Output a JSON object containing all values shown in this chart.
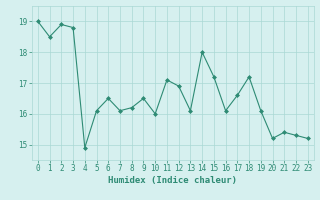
{
  "x": [
    0,
    1,
    2,
    3,
    4,
    5,
    6,
    7,
    8,
    9,
    10,
    11,
    12,
    13,
    14,
    15,
    16,
    17,
    18,
    19,
    20,
    21,
    22,
    23
  ],
  "y": [
    19.0,
    18.5,
    18.9,
    18.8,
    14.9,
    16.1,
    16.5,
    16.1,
    16.2,
    16.5,
    16.0,
    17.1,
    16.9,
    16.1,
    18.0,
    17.2,
    16.1,
    16.6,
    17.2,
    16.1,
    15.2,
    15.4,
    15.3,
    15.2
  ],
  "line_color": "#2e8b74",
  "marker": "D",
  "marker_size": 2.0,
  "bg_color": "#d6f0ef",
  "grid_color": "#aad8d4",
  "xlabel": "Humidex (Indice chaleur)",
  "xlim": [
    -0.5,
    23.5
  ],
  "ylim": [
    14.5,
    19.5
  ],
  "yticks": [
    15,
    16,
    17,
    18,
    19
  ],
  "xticks": [
    0,
    1,
    2,
    3,
    4,
    5,
    6,
    7,
    8,
    9,
    10,
    11,
    12,
    13,
    14,
    15,
    16,
    17,
    18,
    19,
    20,
    21,
    22,
    23
  ],
  "tick_color": "#2e8b74",
  "label_fontsize": 6.5,
  "tick_fontsize": 5.5,
  "linewidth": 0.8
}
